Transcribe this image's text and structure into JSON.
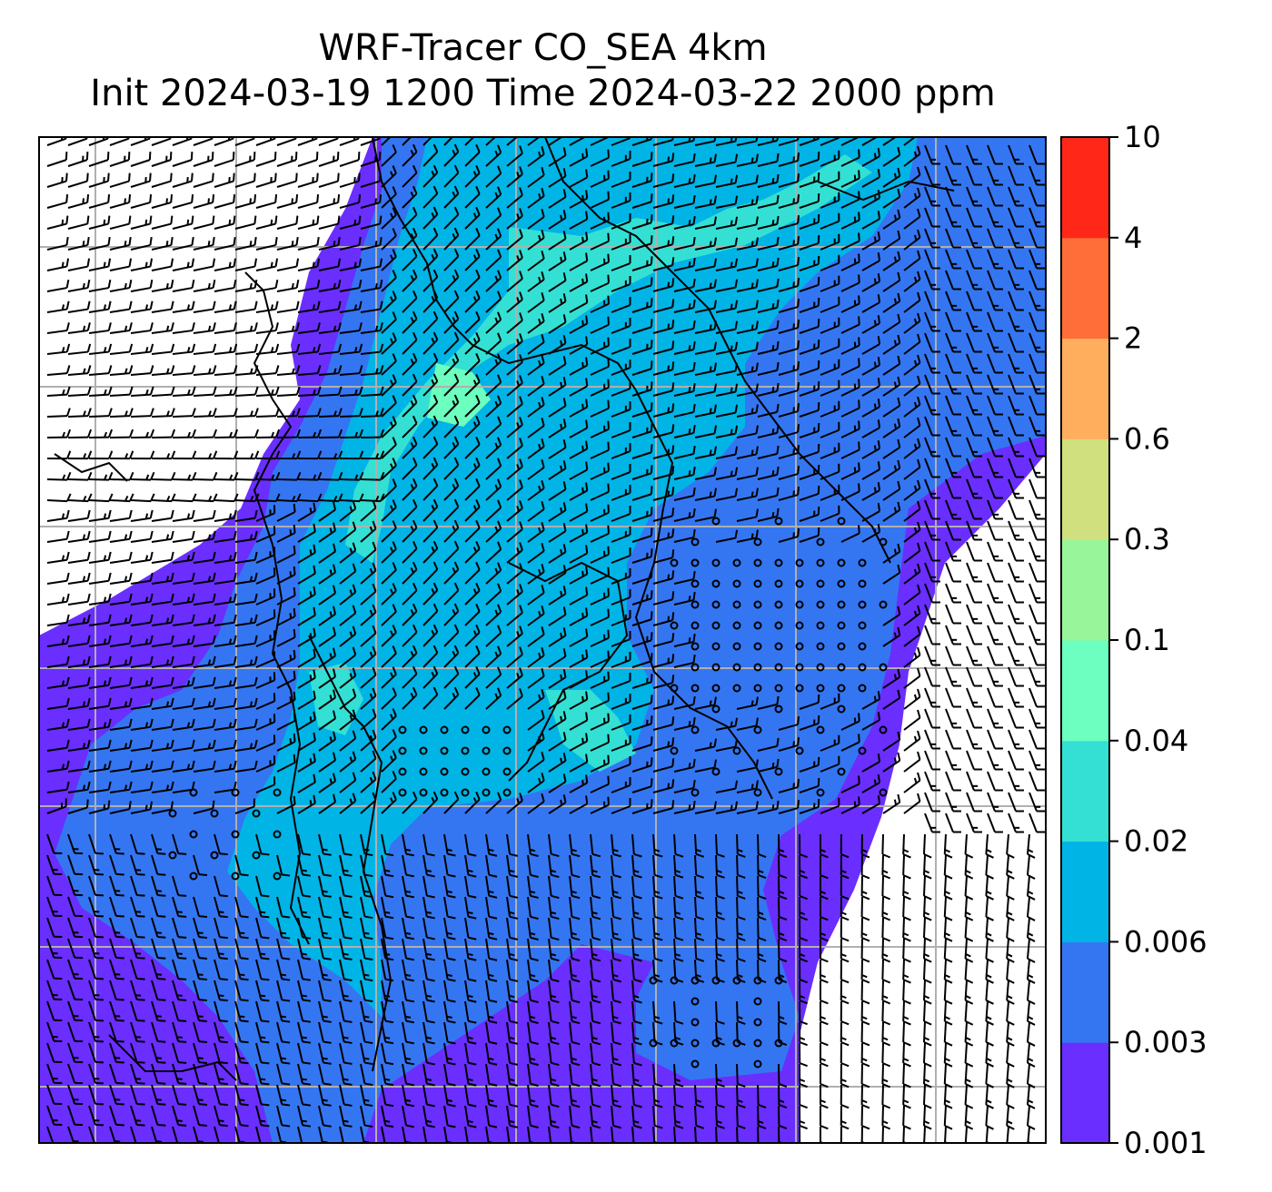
{
  "title": {
    "line1": "WRF-Tracer CO_SEA 4km",
    "line2": "Init 2024-03-19 1200 Time 2024-03-22 2000 ppm"
  },
  "colorbar": {
    "levels": [
      "0.001",
      "0.003",
      "0.006",
      "0.02",
      "0.04",
      "0.1",
      "0.3",
      "0.6",
      "2",
      "4",
      "10"
    ],
    "colors": [
      "#6a2eff",
      "#3476f2",
      "#00b4e6",
      "#34e0d4",
      "#6cffc0",
      "#98f59a",
      "#d0e07e",
      "#ffae5e",
      "#ff6e38",
      "#ff2818"
    ]
  },
  "map": {
    "background": "#ffffff",
    "gridline_color": "#b0b0b0",
    "barb_color": "#000000",
    "coast_color": "#000000"
  }
}
